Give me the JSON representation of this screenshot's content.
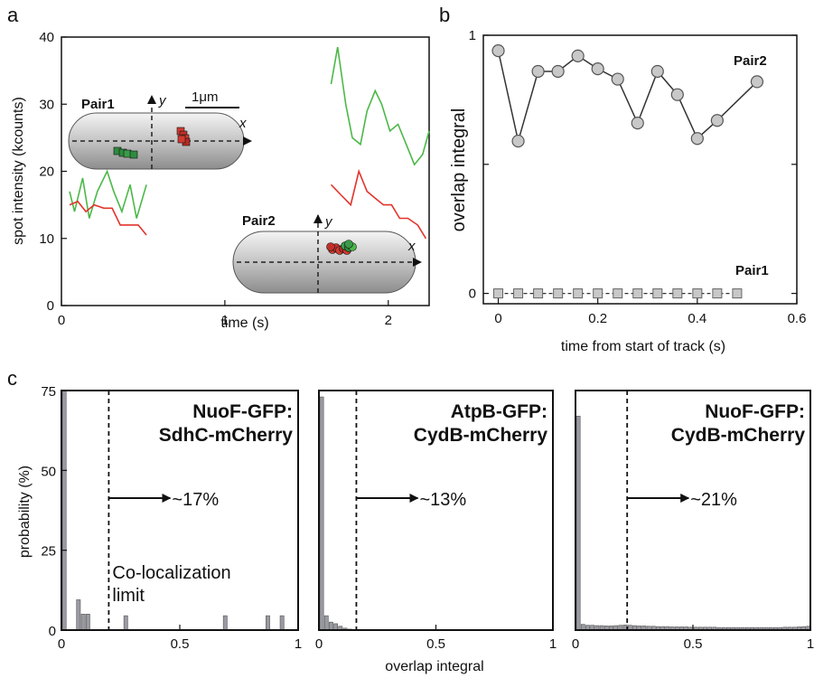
{
  "panels": {
    "a": "a",
    "b": "b",
    "c": "c"
  },
  "chart_data": [
    {
      "panel": "a",
      "type": "line",
      "xlabel": "time (s)",
      "ylabel": "spot intensity (kcounts)",
      "xlim": [
        0,
        2.25
      ],
      "ylim": [
        0,
        40
      ],
      "xticks": [
        "0",
        "1",
        "2"
      ],
      "xtick_values": [
        0,
        1,
        2
      ],
      "yticks": [
        "0",
        "10",
        "20",
        "30",
        "40"
      ],
      "ytick_values": [
        0,
        10,
        20,
        30,
        40
      ],
      "colors": {
        "green": "#4cb848",
        "red": "#e2342b"
      },
      "series": [
        {
          "color": "green",
          "x": [
            0.05,
            0.08,
            0.13,
            0.17,
            0.22,
            0.28,
            0.32,
            0.37,
            0.42,
            0.46,
            0.52
          ],
          "y": [
            17,
            14,
            19,
            13,
            17,
            20,
            17,
            14,
            18,
            13,
            18
          ]
        },
        {
          "color": "red",
          "x": [
            0.05,
            0.1,
            0.15,
            0.2,
            0.26,
            0.31,
            0.36,
            0.42,
            0.47,
            0.52
          ],
          "y": [
            15,
            15.5,
            14,
            15,
            14.5,
            14.5,
            12,
            12,
            12,
            10.5
          ]
        },
        {
          "color": "green",
          "x": [
            1.65,
            1.69,
            1.74,
            1.78,
            1.83,
            1.87,
            1.92,
            1.96,
            2.01,
            2.06,
            2.11,
            2.16,
            2.21,
            2.25
          ],
          "y": [
            33,
            38.5,
            30,
            25,
            24,
            29,
            32,
            30,
            26,
            27,
            24,
            21,
            22.5,
            26
          ]
        },
        {
          "color": "red",
          "x": [
            1.65,
            1.71,
            1.77,
            1.82,
            1.87,
            1.92,
            1.97,
            2.02,
            2.07,
            2.12,
            2.18,
            2.23
          ],
          "y": [
            18,
            16.5,
            15,
            20,
            17,
            16,
            15,
            15,
            13,
            13,
            12,
            10
          ]
        }
      ],
      "insets": [
        {
          "label": "Pair1",
          "scale": "1μm",
          "axis_x": "x",
          "axis_y": "y",
          "spots": [
            {
              "color": "green",
              "count": 4
            },
            {
              "color": "red",
              "count": 5
            }
          ]
        },
        {
          "label": "Pair2",
          "axis_x": "x",
          "axis_y": "y",
          "spots": [
            {
              "color": "red",
              "count": 6
            },
            {
              "color": "green",
              "count": 4
            }
          ]
        }
      ]
    },
    {
      "panel": "b",
      "type": "line",
      "xlabel": "time from start of track (s)",
      "ylabel": "overlap integral",
      "xlim": [
        -0.03,
        0.6
      ],
      "ylim": [
        -0.04,
        1
      ],
      "xticks": [
        "0",
        "0.2",
        "0.4",
        "0.6"
      ],
      "xtick_values": [
        0,
        0.2,
        0.4,
        0.6
      ],
      "yticks": [
        "0",
        "1"
      ],
      "ytick_values": [
        0,
        1
      ],
      "minor_yticks": [
        0.5
      ],
      "series": [
        {
          "name": "Pair2",
          "marker": "circle",
          "x": [
            0,
            0.04,
            0.08,
            0.12,
            0.16,
            0.2,
            0.24,
            0.28,
            0.32,
            0.36,
            0.4,
            0.44,
            0.52
          ],
          "y": [
            0.94,
            0.59,
            0.86,
            0.86,
            0.92,
            0.87,
            0.83,
            0.66,
            0.86,
            0.77,
            0.6,
            0.67,
            0.82
          ]
        },
        {
          "name": "Pair1",
          "marker": "square",
          "x": [
            0,
            0.04,
            0.08,
            0.12,
            0.16,
            0.2,
            0.24,
            0.28,
            0.32,
            0.36,
            0.4,
            0.44,
            0.48
          ],
          "y": [
            0,
            0,
            0,
            0,
            0,
            0,
            0,
            0,
            0,
            0,
            0,
            0,
            0
          ]
        }
      ]
    },
    {
      "panel": "c",
      "type": "bar",
      "title": "NuoF-GFP:\nSdhC-mCherry",
      "title_lines": [
        "NuoF-GFP:",
        "SdhC-mCherry"
      ],
      "threshold": 0.2,
      "fraction_label": "~17%",
      "annotation": [
        "Co-localization",
        "limit"
      ],
      "xlim": [
        0,
        1
      ],
      "ylim": [
        0,
        75
      ],
      "xticks": [
        "0",
        "0.5",
        "1"
      ],
      "yticks": [
        "0",
        "25",
        "50",
        "75"
      ],
      "ylabel": "probability (%)",
      "bins": [
        0,
        0.02,
        0.04,
        0.06,
        0.08,
        0.1,
        0.26,
        0.68,
        0.86,
        0.92
      ],
      "values": [
        75,
        0,
        0,
        9.5,
        5,
        5,
        4.5,
        4.5,
        4.5,
        4.5
      ]
    },
    {
      "panel": "c",
      "type": "bar",
      "title": "AtpB-GFP:\nCydB-mCherry",
      "title_lines": [
        "AtpB-GFP:",
        "CydB-mCherry"
      ],
      "threshold": 0.16,
      "fraction_label": "~13%",
      "xlim": [
        0,
        1
      ],
      "ylim": [
        0,
        75
      ],
      "xticks": [
        "0",
        "0.5",
        "1"
      ],
      "xlabel": "overlap integral",
      "bins": [
        0,
        0.02,
        0.04,
        0.06,
        0.08,
        0.1,
        0.12
      ],
      "values": [
        73,
        4.5,
        2.5,
        2,
        1.2,
        0.6,
        0.3
      ]
    },
    {
      "panel": "c",
      "type": "bar",
      "title": "NuoF-GFP:\nCydB-mCherry",
      "title_lines": [
        "NuoF-GFP:",
        "CydB-mCherry"
      ],
      "threshold": 0.22,
      "fraction_label": "~21%",
      "xlim": [
        0,
        1
      ],
      "ylim": [
        0,
        75
      ],
      "xticks": [
        "0",
        "0.5",
        "1"
      ],
      "bins": [
        0,
        0.02,
        0.04,
        0.06,
        0.08,
        0.1,
        0.12,
        0.14,
        0.16,
        0.18,
        0.2,
        0.22,
        0.24,
        0.26,
        0.28,
        0.3,
        0.32,
        0.34,
        0.36,
        0.38,
        0.4,
        0.42,
        0.44,
        0.46,
        0.48,
        0.5,
        0.52,
        0.54,
        0.56,
        0.58,
        0.6,
        0.62,
        0.64,
        0.66,
        0.68,
        0.7,
        0.72,
        0.74,
        0.76,
        0.78,
        0.8,
        0.82,
        0.84,
        0.86,
        0.88,
        0.9,
        0.92,
        0.94,
        0.96,
        0.98
      ],
      "values": [
        67,
        1.8,
        1.5,
        1.5,
        1.4,
        1.4,
        1.3,
        1.3,
        1.4,
        1.5,
        1.6,
        1.5,
        1.4,
        1.3,
        1.3,
        1.2,
        1.2,
        1.1,
        1.1,
        1.1,
        1.0,
        1.0,
        1.0,
        1.0,
        0.9,
        0.9,
        0.9,
        0.9,
        0.9,
        0.9,
        0.8,
        0.8,
        0.8,
        0.8,
        0.8,
        0.8,
        0.8,
        0.8,
        0.8,
        0.8,
        0.8,
        0.8,
        0.8,
        0.8,
        0.9,
        0.9,
        0.9,
        1.0,
        1.1,
        1.2
      ]
    }
  ]
}
